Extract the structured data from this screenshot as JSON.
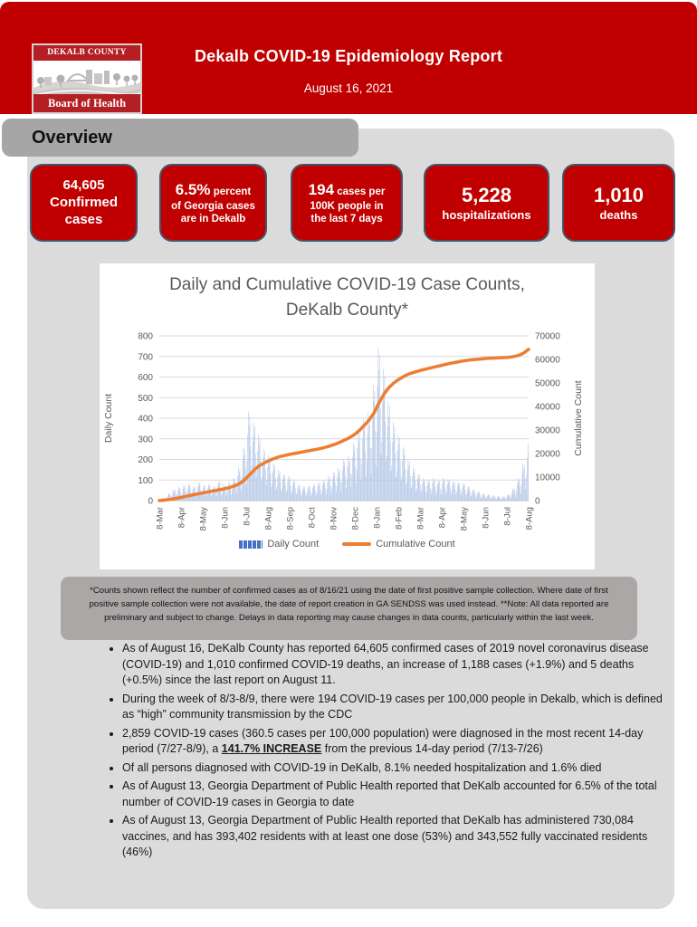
{
  "header": {
    "title": "Dekalb COVID-19 Epidemiology Report",
    "date": "August 16, 2021",
    "logo_top": "DEKALB COUNTY",
    "logo_bottom": "Board of Health"
  },
  "overview": {
    "label": "Overview"
  },
  "cards": [
    {
      "big": "64,605",
      "inline_word": "",
      "lines": [
        "Confirmed",
        "cases"
      ]
    },
    {
      "big": "6.5%",
      "inline_word": "percent",
      "lines": [
        "of Georgia cases",
        "are in Dekalb"
      ]
    },
    {
      "big": "194",
      "inline_word": "cases per",
      "lines": [
        "100K people in",
        "the last 7 days"
      ]
    },
    {
      "big": "5,228",
      "inline_word": "",
      "lines": [
        "hospitalizations"
      ]
    },
    {
      "big": "1,010",
      "inline_word": "",
      "lines": [
        "deaths"
      ]
    }
  ],
  "chart_data": {
    "type": "bar",
    "title": "Daily and Cumulative COVID-19 Case Counts, DeKalb County*",
    "x_ticks": [
      "8-Mar",
      "8-Apr",
      "8-May",
      "8-Jun",
      "8-Jul",
      "8-Aug",
      "8-Sep",
      "8-Oct",
      "8-Nov",
      "8-Dec",
      "8-Jan",
      "8-Feb",
      "8-Mar",
      "8-Apr",
      "8-May",
      "8-Jun",
      "8-Jul",
      "8-Aug"
    ],
    "left_axis": {
      "label": "Daily Count",
      "min": 0,
      "max": 800,
      "tick_step": 100
    },
    "right_axis": {
      "label": "Cumulative Count",
      "min": 0,
      "max": 70000,
      "tick_step": 10000
    },
    "legend_position": "bottom",
    "grid": true,
    "sampling": "weekly, Mar 2020 through Aug 2021 (values estimated from plot)",
    "series": [
      {
        "name": "Daily Count",
        "type": "bar",
        "axis": "left",
        "color": "#B4C7E7",
        "values": [
          2,
          15,
          35,
          55,
          65,
          75,
          80,
          70,
          90,
          75,
          80,
          70,
          95,
          80,
          90,
          110,
          160,
          260,
          430,
          380,
          320,
          250,
          220,
          180,
          150,
          130,
          120,
          100,
          80,
          70,
          75,
          80,
          90,
          100,
          120,
          140,
          160,
          200,
          220,
          280,
          340,
          400,
          430,
          560,
          745,
          640,
          480,
          380,
          320,
          260,
          200,
          160,
          130,
          110,
          100,
          110,
          100,
          110,
          105,
          95,
          90,
          85,
          70,
          55,
          45,
          35,
          30,
          25,
          22,
          20,
          30,
          60,
          110,
          180,
          280
        ]
      },
      {
        "name": "Cumulative Count",
        "type": "line",
        "axis": "right",
        "color": "#ED7D31",
        "values": [
          50,
          200,
          450,
          800,
          1200,
          1650,
          2100,
          2550,
          2950,
          3400,
          3800,
          4200,
          4600,
          5000,
          5500,
          6200,
          7100,
          8600,
          10800,
          13000,
          14800,
          16000,
          17000,
          17900,
          18600,
          19100,
          19600,
          20000,
          20400,
          20800,
          21200,
          21600,
          22000,
          22500,
          23100,
          23800,
          24600,
          25600,
          26600,
          27900,
          29600,
          31800,
          34200,
          37200,
          41500,
          45200,
          48000,
          50000,
          51500,
          52800,
          53800,
          54500,
          55100,
          55700,
          56200,
          56700,
          57200,
          57700,
          58200,
          58600,
          59000,
          59400,
          59700,
          59900,
          60100,
          60300,
          60450,
          60550,
          60650,
          60750,
          60900,
          61200,
          61700,
          62700,
          64300
        ]
      }
    ]
  },
  "footnote": "*Counts shown reflect the number of confirmed cases as of 8/16/21 using the date of first positive sample collection. Where date of first positive sample collection were not available, the date of report creation in GA SENDSS was used instead. **Note: All data reported are preliminary and subject to change. Delays in data reporting may cause changes in data counts, particularly within the last week.",
  "bullets": [
    {
      "segments": [
        {
          "t": "As of August 16, DeKalb County has reported 64,605 confirmed cases of 2019 novel coronavirus disease (COVID-19) and 1,010 confirmed COVID-19 deaths, an increase of 1,188 cases (+1.9%) and 5 deaths (+0.5%) since the last report on August 11."
        }
      ]
    },
    {
      "segments": [
        {
          "t": "During the week of 8/3-8/9, there were 194 COVID-19 cases per 100,000 people in Dekalb, which is defined as “high” community transmission by the CDC"
        }
      ]
    },
    {
      "segments": [
        {
          "t": "2,859 COVID-19 cases (360.5 cases per 100,000 population) were diagnosed in the most recent 14-day period (7/27-8/9), a "
        },
        {
          "t": "141.7% INCREASE",
          "b": true,
          "u": true
        },
        {
          "t": " from the previous 14-day period (7/13-7/26)"
        }
      ]
    },
    {
      "segments": [
        {
          "t": "Of all persons diagnosed with COVID-19 in DeKalb, 8.1% needed hospitalization and 1.6% died"
        }
      ]
    },
    {
      "segments": [
        {
          "t": "As of August 13, Georgia Department of Public Health reported that DeKalb accounted for 6.5% of the total number of COVID-19 cases in Georgia to date"
        }
      ]
    },
    {
      "segments": [
        {
          "t": "As of August 13, Georgia Department of Public Health reported that DeKalb has administered 730,084 vaccines, and has 393,402 residents with at least one dose (53%) and 343,552 fully vaccinated residents (46%)"
        }
      ]
    }
  ],
  "colors": {
    "accent_red": "#C00000",
    "card_border": "#44546A",
    "container_gray": "#DBDBDB",
    "pill_gray": "#A6A6A6",
    "footnote_gray": "#ABA7A7",
    "bar_blue": "#B4C7E7",
    "line_orange": "#ED7D31",
    "legend_marker_blue": "#4472C4",
    "axis_text": "#595959",
    "gridline": "#D9D9D9"
  }
}
